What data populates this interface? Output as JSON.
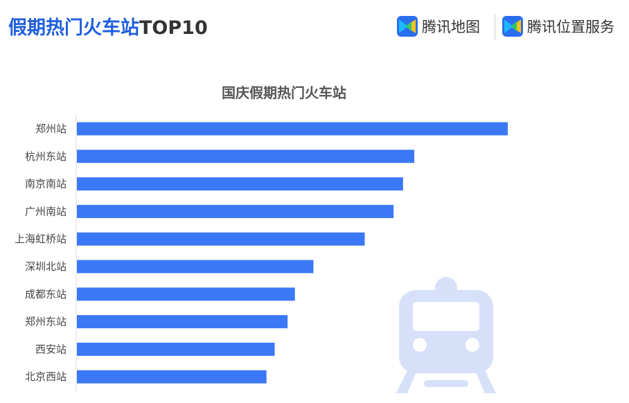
{
  "header": {
    "title_accent": "假期热门火车站",
    "title_rest": "TOP10",
    "brand_map": "腾讯地图",
    "brand_location": "腾讯位置服务"
  },
  "colors": {
    "bar": "#3b78f5",
    "accent": "#1f5fdc",
    "train_icon": "#d6e0f9"
  },
  "icons": [
    "train-icon",
    "tencent-map-logo-icon"
  ],
  "chart_data": {
    "type": "bar",
    "orientation": "horizontal",
    "title": "国庆假期热门火车站",
    "xlabel": "",
    "ylabel": "",
    "xlim": [
      0,
      100
    ],
    "categories": [
      "郑州站",
      "杭州东站",
      "南京南站",
      "广州南站",
      "上海虹桥站",
      "深圳北站",
      "成都东站",
      "郑州东站",
      "西安站",
      "北京西站"
    ],
    "values": [
      100,
      78.3,
      75.7,
      73.5,
      66.8,
      54.9,
      50.6,
      48.9,
      45.9,
      44.0
    ],
    "grid": false,
    "legend": "none"
  }
}
